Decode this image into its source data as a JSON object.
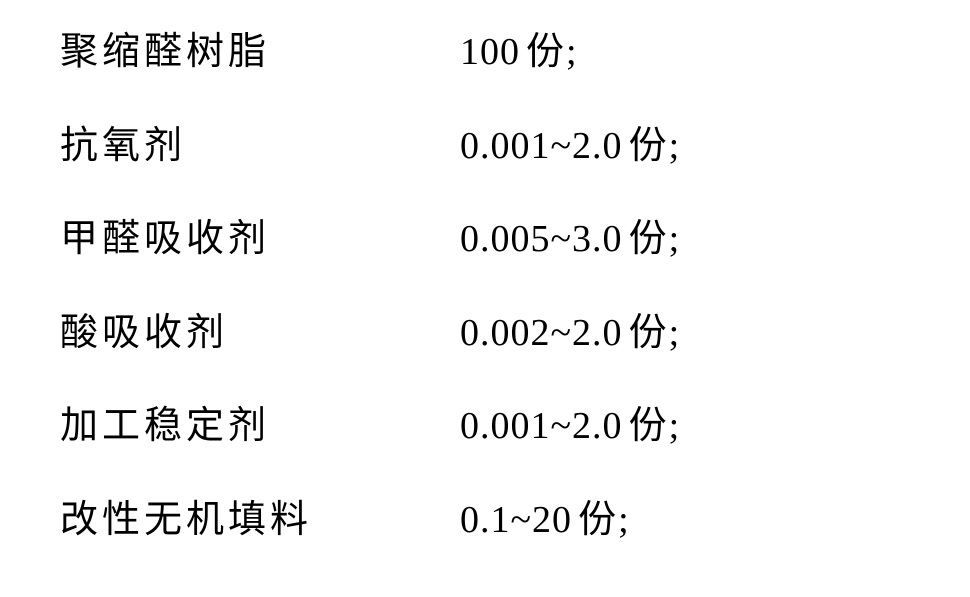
{
  "rows": [
    {
      "label": "聚缩醛树脂",
      "value": "100",
      "unit": "份",
      "punct": ";"
    },
    {
      "label": "抗氧剂",
      "value": "0.001~2.0",
      "unit": "份",
      "punct": ";"
    },
    {
      "label": "甲醛吸收剂",
      "value": "0.005~3.0",
      "unit": "份",
      "punct": ";"
    },
    {
      "label": "酸吸收剂",
      "value": "0.002~2.0",
      "unit": "份",
      "punct": ";"
    },
    {
      "label": "加工稳定剂",
      "value": "0.001~2.0",
      "unit": "份",
      "punct": ";"
    },
    {
      "label": "改性无机填料",
      "value": "0.1~20",
      "unit": "份",
      "punct": ";"
    }
  ]
}
